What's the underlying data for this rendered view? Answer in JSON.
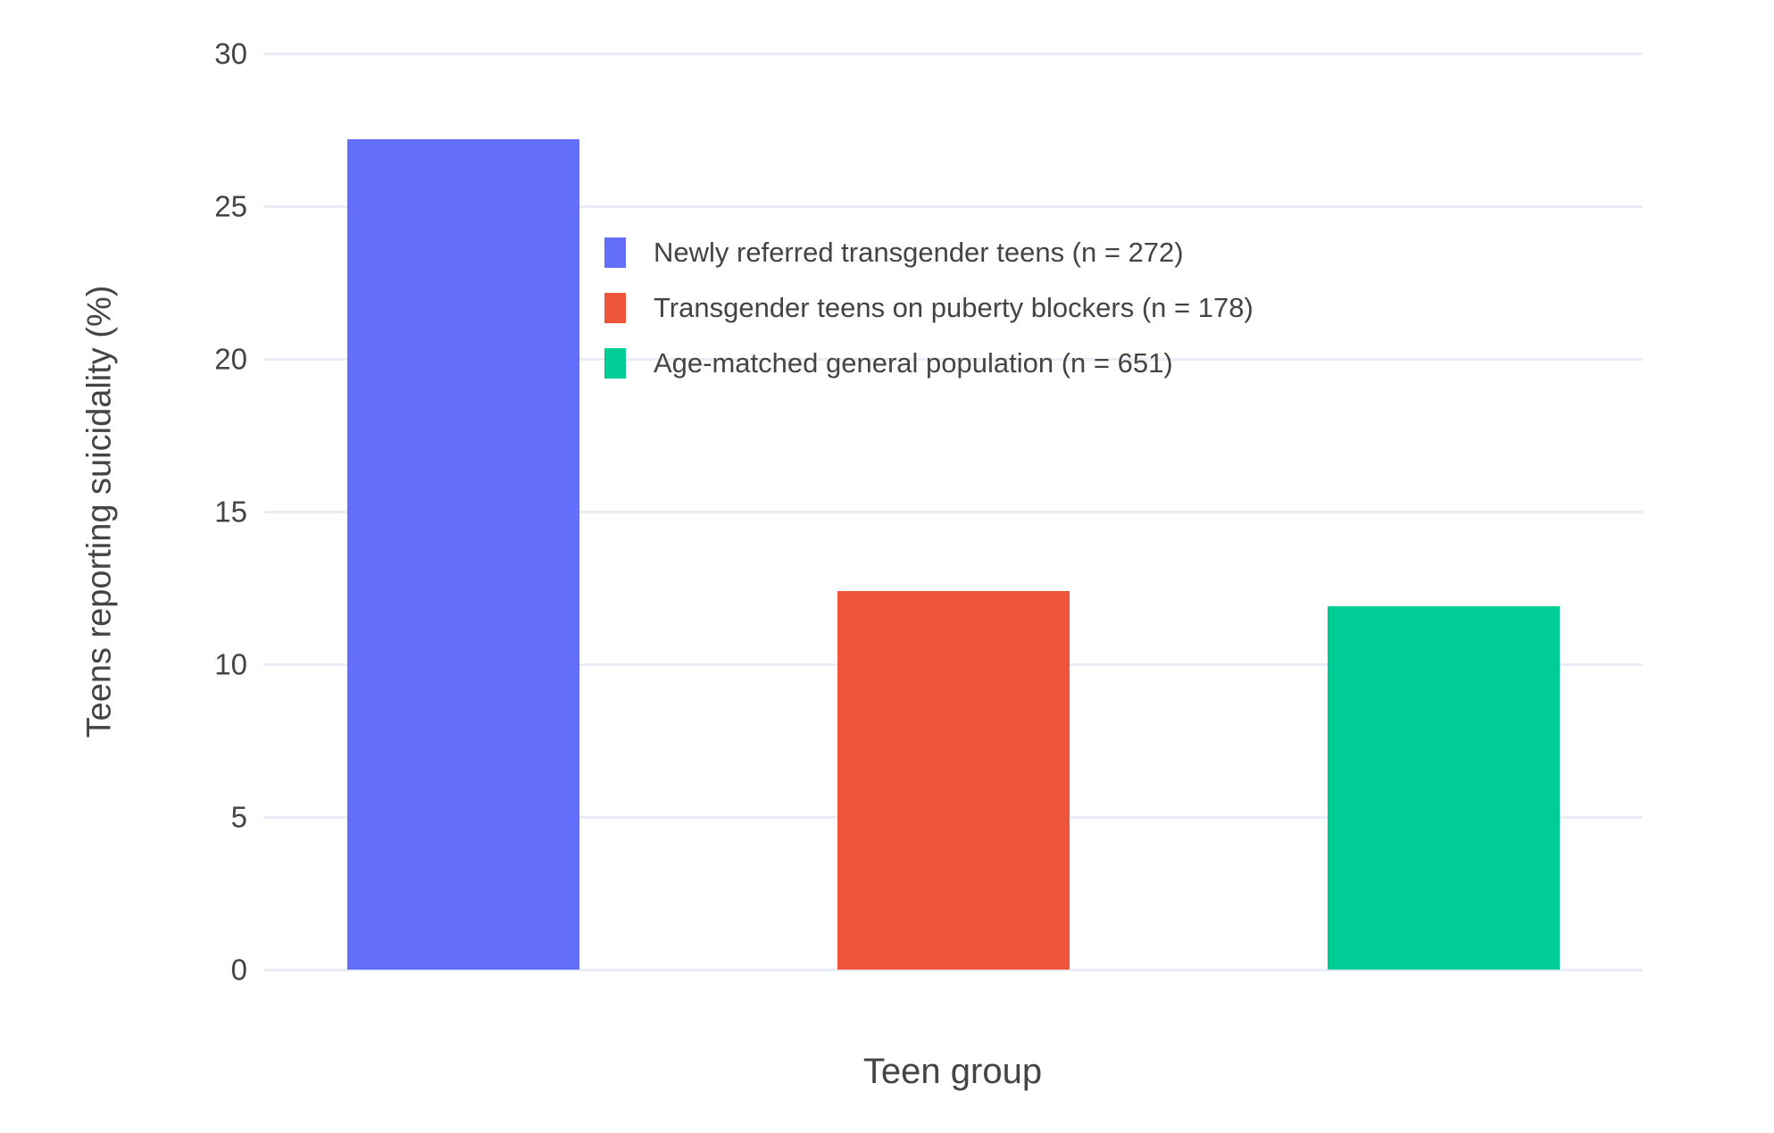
{
  "chart_data": {
    "type": "bar",
    "title": "",
    "xlabel": "Teen group",
    "ylabel": "Teens reporting suicidality (%)",
    "ylim": [
      0,
      30
    ],
    "yticks": [
      0,
      5,
      10,
      15,
      20,
      25,
      30
    ],
    "grid": true,
    "legend_position": "inside top-left of plot",
    "categories": [
      "Newly referred transgender teens (n = 272)",
      "Transgender teens on puberty blockers (n = 178)",
      "Age-matched general population (n = 651)"
    ],
    "values": [
      27.2,
      12.4,
      11.9
    ],
    "series_colors": [
      "#636EFA",
      "#EF553B",
      "#00CC96"
    ],
    "legend": [
      {
        "label": "Newly referred transgender teens (n = 272)",
        "color": "#636EFA"
      },
      {
        "label": "Transgender teens on puberty blockers (n = 178)",
        "color": "#EF553B"
      },
      {
        "label": "Age-matched general population (n = 651)",
        "color": "#00CC96"
      }
    ]
  },
  "colors": {
    "background": "#FFFFFF",
    "gridline": "#E8EDF6",
    "text": "#444444"
  }
}
